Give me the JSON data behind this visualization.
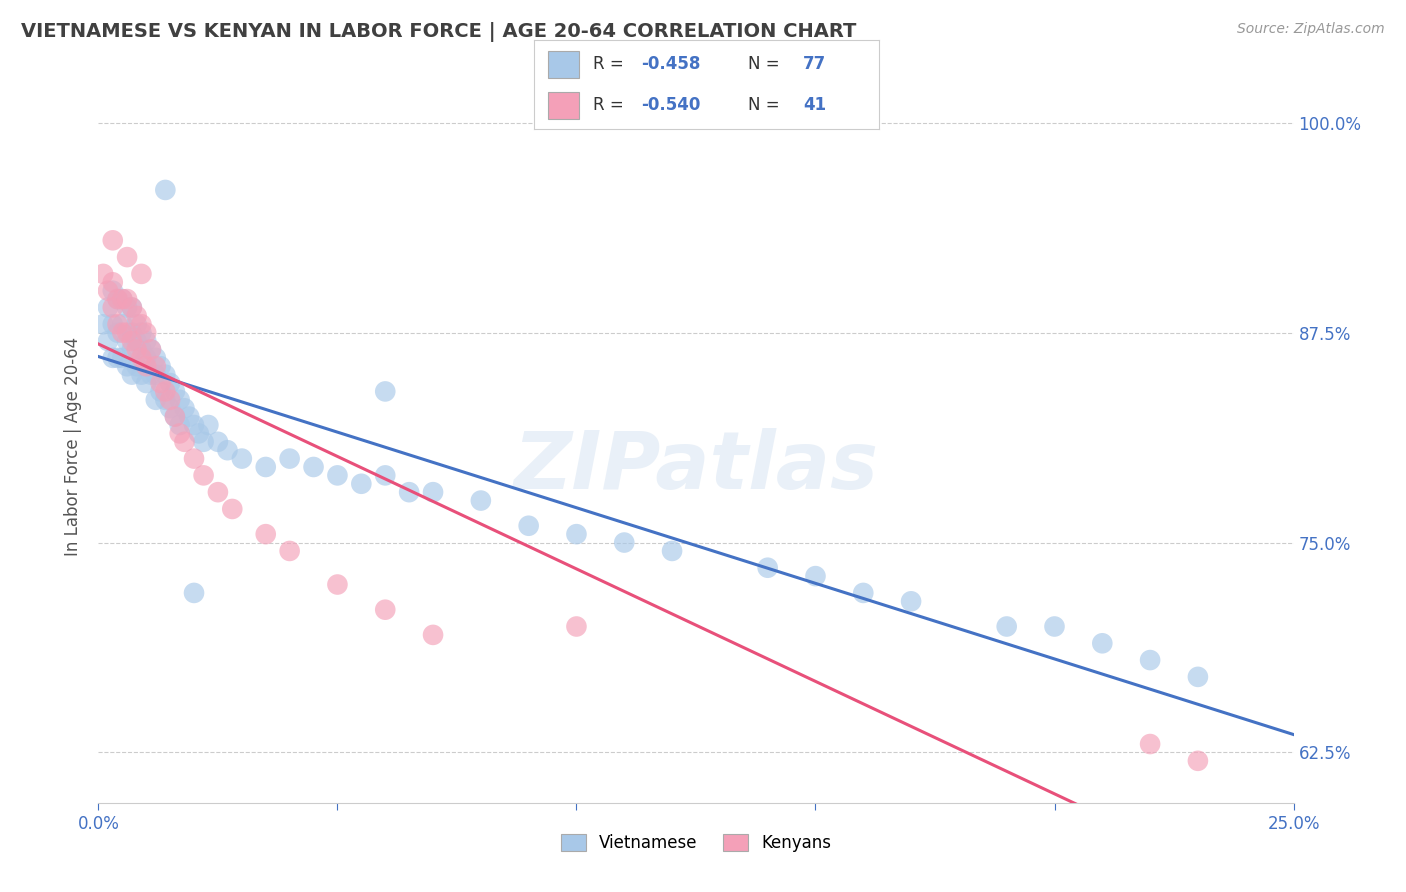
{
  "title": "VIETNAMESE VS KENYAN IN LABOR FORCE | AGE 20-64 CORRELATION CHART",
  "source": "Source: ZipAtlas.com",
  "ylabel": "In Labor Force | Age 20-64",
  "xlim": [
    0.0,
    0.25
  ],
  "ylim": [
    0.595,
    1.02
  ],
  "yticks": [
    0.625,
    0.75,
    0.875,
    1.0
  ],
  "yticklabels": [
    "62.5%",
    "75.0%",
    "87.5%",
    "100.0%"
  ],
  "blue_color": "#a8c8e8",
  "pink_color": "#f4a0b8",
  "blue_line_color": "#4472c4",
  "pink_line_color": "#e8507a",
  "title_color": "#404040",
  "axis_label_color": "#555555",
  "tick_color": "#4472c4",
  "source_color": "#999999",
  "watermark": "ZIPatlas",
  "background_color": "#ffffff",
  "grid_color": "#cccccc",
  "viet_x": [
    0.001,
    0.002,
    0.002,
    0.003,
    0.003,
    0.003,
    0.004,
    0.004,
    0.004,
    0.005,
    0.005,
    0.005,
    0.006,
    0.006,
    0.006,
    0.007,
    0.007,
    0.007,
    0.007,
    0.008,
    0.008,
    0.008,
    0.009,
    0.009,
    0.009,
    0.01,
    0.01,
    0.01,
    0.011,
    0.011,
    0.012,
    0.012,
    0.012,
    0.013,
    0.013,
    0.014,
    0.014,
    0.015,
    0.015,
    0.016,
    0.016,
    0.017,
    0.017,
    0.018,
    0.019,
    0.02,
    0.021,
    0.022,
    0.023,
    0.025,
    0.027,
    0.03,
    0.035,
    0.04,
    0.045,
    0.05,
    0.055,
    0.06,
    0.065,
    0.07,
    0.08,
    0.09,
    0.1,
    0.11,
    0.12,
    0.14,
    0.15,
    0.16,
    0.17,
    0.19,
    0.2,
    0.21,
    0.22,
    0.23,
    0.014,
    0.02,
    0.06
  ],
  "viet_y": [
    0.88,
    0.89,
    0.87,
    0.9,
    0.88,
    0.86,
    0.895,
    0.875,
    0.86,
    0.895,
    0.88,
    0.86,
    0.89,
    0.87,
    0.855,
    0.89,
    0.875,
    0.865,
    0.85,
    0.88,
    0.87,
    0.855,
    0.875,
    0.865,
    0.85,
    0.87,
    0.86,
    0.845,
    0.865,
    0.85,
    0.86,
    0.85,
    0.835,
    0.855,
    0.84,
    0.85,
    0.835,
    0.845,
    0.83,
    0.84,
    0.825,
    0.835,
    0.82,
    0.83,
    0.825,
    0.82,
    0.815,
    0.81,
    0.82,
    0.81,
    0.805,
    0.8,
    0.795,
    0.8,
    0.795,
    0.79,
    0.785,
    0.79,
    0.78,
    0.78,
    0.775,
    0.76,
    0.755,
    0.75,
    0.745,
    0.735,
    0.73,
    0.72,
    0.715,
    0.7,
    0.7,
    0.69,
    0.68,
    0.67,
    0.96,
    0.72,
    0.84
  ],
  "kenya_x": [
    0.001,
    0.002,
    0.003,
    0.003,
    0.004,
    0.004,
    0.005,
    0.005,
    0.006,
    0.006,
    0.007,
    0.007,
    0.008,
    0.008,
    0.009,
    0.009,
    0.01,
    0.01,
    0.011,
    0.012,
    0.013,
    0.014,
    0.015,
    0.016,
    0.017,
    0.018,
    0.02,
    0.022,
    0.025,
    0.028,
    0.035,
    0.04,
    0.05,
    0.06,
    0.07,
    0.003,
    0.006,
    0.009,
    0.22,
    0.23,
    0.1
  ],
  "kenya_y": [
    0.91,
    0.9,
    0.905,
    0.89,
    0.895,
    0.88,
    0.895,
    0.875,
    0.895,
    0.875,
    0.89,
    0.87,
    0.885,
    0.865,
    0.88,
    0.86,
    0.875,
    0.855,
    0.865,
    0.855,
    0.845,
    0.84,
    0.835,
    0.825,
    0.815,
    0.81,
    0.8,
    0.79,
    0.78,
    0.77,
    0.755,
    0.745,
    0.725,
    0.71,
    0.695,
    0.93,
    0.92,
    0.91,
    0.63,
    0.62,
    0.7
  ]
}
